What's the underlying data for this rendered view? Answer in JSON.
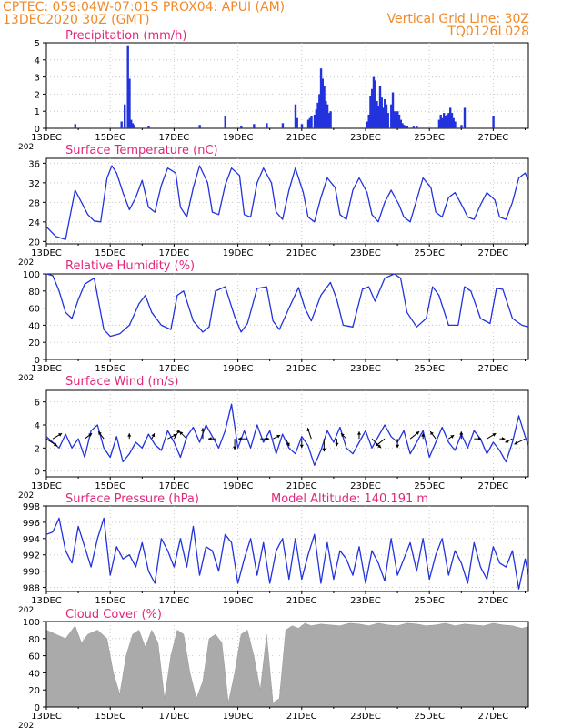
{
  "header": {
    "line1_left": "CPTEC:  059:04W-07:01S  PROX04: APUI (AM)",
    "line2_left": "13DEC2020 30Z (GMT)",
    "line1_right": "Vertical Grid Line: 30Z",
    "line2_right": "TQ0126L028",
    "color": "#f08a2a",
    "title_color": "#e0287a",
    "series_color": "#2233dd",
    "cloud_color": "#aaaaaa"
  },
  "x_ticks": [
    "13DEC",
    "15DEC",
    "17DEC",
    "19DEC",
    "21DEC",
    "23DEC",
    "25DEC",
    "27DEC"
  ],
  "x_tick_sub": "202",
  "x_range_days": [
    13,
    28.1
  ],
  "panels": {
    "precip": {
      "title": "Precipitation  (mm/h)",
      "y_ticks": [
        "0",
        "1",
        "2",
        "3",
        "4",
        "5"
      ],
      "chart_data": {
        "type": "bar",
        "ylim": [
          0,
          5
        ],
        "x_days": [
          13.9,
          15.35,
          15.45,
          15.55,
          15.6,
          15.65,
          15.7,
          15.75,
          16.2,
          17.8,
          18.6,
          19.1,
          19.5,
          19.9,
          20.4,
          20.8,
          20.85,
          21.0,
          21.2,
          21.25,
          21.3,
          21.4,
          21.45,
          21.5,
          21.55,
          21.6,
          21.65,
          21.7,
          21.75,
          21.8,
          21.85,
          21.9,
          23.05,
          23.1,
          23.15,
          23.2,
          23.25,
          23.3,
          23.35,
          23.4,
          23.45,
          23.5,
          23.55,
          23.6,
          23.65,
          23.7,
          23.8,
          23.85,
          23.9,
          23.95,
          24.0,
          24.05,
          24.1,
          24.15,
          24.2,
          24.25,
          24.3,
          24.5,
          24.6,
          25.3,
          25.35,
          25.4,
          25.45,
          25.5,
          25.55,
          25.6,
          25.65,
          25.7,
          25.75,
          25.8,
          26.0,
          26.1,
          27.0
        ],
        "values": [
          0.25,
          0.4,
          1.4,
          4.8,
          2.9,
          0.5,
          0.3,
          0.2,
          0.15,
          0.2,
          0.7,
          0.15,
          0.25,
          0.3,
          0.3,
          1.4,
          0.6,
          0.25,
          0.5,
          0.6,
          0.7,
          0.8,
          1.1,
          1.5,
          2.0,
          3.5,
          2.9,
          2.5,
          1.6,
          1.4,
          0.9,
          1.0,
          0.4,
          0.8,
          1.9,
          2.3,
          3.0,
          2.8,
          1.6,
          1.3,
          2.5,
          1.8,
          1.2,
          1.7,
          1.4,
          0.9,
          1.4,
          2.1,
          1.0,
          0.9,
          1.0,
          0.8,
          0.5,
          0.3,
          0.2,
          0.1,
          0.15,
          0.1,
          0.1,
          0.5,
          0.8,
          0.6,
          0.9,
          0.7,
          0.8,
          0.9,
          1.2,
          0.9,
          0.6,
          0.4,
          0.2,
          1.2,
          0.7
        ]
      }
    },
    "temp": {
      "title": "Surface Temperature (nC)",
      "y_ticks": [
        "20",
        "24",
        "28",
        "32",
        "36"
      ],
      "chart_data": {
        "type": "line",
        "ylim": [
          19.5,
          37
        ],
        "x_days": [
          13.0,
          13.3,
          13.6,
          13.9,
          14.1,
          14.3,
          14.5,
          14.7,
          14.9,
          15.05,
          15.2,
          15.4,
          15.6,
          15.8,
          16.0,
          16.2,
          16.4,
          16.6,
          16.8,
          17.05,
          17.2,
          17.4,
          17.6,
          17.8,
          18.05,
          18.2,
          18.4,
          18.6,
          18.8,
          19.05,
          19.2,
          19.4,
          19.6,
          19.8,
          20.05,
          20.2,
          20.4,
          20.6,
          20.8,
          21.05,
          21.2,
          21.4,
          21.6,
          21.8,
          22.05,
          22.2,
          22.4,
          22.6,
          22.8,
          23.05,
          23.2,
          23.4,
          23.6,
          23.8,
          24.05,
          24.2,
          24.4,
          24.6,
          24.8,
          25.05,
          25.2,
          25.4,
          25.6,
          25.8,
          26.05,
          26.2,
          26.4,
          26.6,
          26.8,
          27.05,
          27.2,
          27.4,
          27.6,
          27.8,
          28.0,
          28.1
        ],
        "values": [
          23.0,
          21.0,
          20.4,
          30.5,
          28.0,
          25.5,
          24.2,
          24.0,
          33.0,
          35.5,
          34.0,
          30.0,
          26.5,
          29.0,
          32.5,
          27.0,
          26.0,
          31.5,
          35.0,
          34.0,
          27.0,
          25.0,
          31.0,
          35.5,
          32.0,
          26.0,
          25.5,
          31.5,
          35.0,
          33.5,
          25.5,
          25.0,
          32.0,
          35.0,
          32.0,
          26.0,
          24.5,
          30.5,
          35.0,
          30.0,
          25.0,
          24.0,
          29.0,
          33.0,
          31.0,
          25.5,
          24.5,
          30.5,
          33.0,
          30.0,
          25.5,
          24.0,
          28.0,
          30.5,
          27.5,
          25.0,
          24.0,
          28.5,
          33.0,
          31.0,
          26.0,
          25.0,
          29.0,
          30.0,
          27.0,
          25.0,
          24.5,
          27.5,
          30.0,
          28.5,
          25.0,
          24.5,
          28.0,
          33.0,
          34.0,
          32.5
        ]
      }
    },
    "rh": {
      "title": "Relative Humidity (%)",
      "y_ticks": [
        "0",
        "20",
        "40",
        "60",
        "80",
        "100"
      ],
      "chart_data": {
        "type": "line",
        "ylim": [
          0,
          100
        ],
        "x_days": [
          13.0,
          13.2,
          13.4,
          13.6,
          13.8,
          14.0,
          14.2,
          14.5,
          14.8,
          15.0,
          15.3,
          15.6,
          15.9,
          16.1,
          16.3,
          16.6,
          16.9,
          17.1,
          17.3,
          17.6,
          17.9,
          18.1,
          18.3,
          18.6,
          18.9,
          19.1,
          19.3,
          19.6,
          19.9,
          20.1,
          20.3,
          20.6,
          20.9,
          21.1,
          21.3,
          21.6,
          21.9,
          22.1,
          22.3,
          22.6,
          22.9,
          23.1,
          23.3,
          23.6,
          23.9,
          24.1,
          24.3,
          24.6,
          24.9,
          25.1,
          25.3,
          25.6,
          25.9,
          26.1,
          26.3,
          26.6,
          26.9,
          27.1,
          27.3,
          27.6,
          27.9,
          28.1
        ],
        "values": [
          100,
          98,
          80,
          55,
          48,
          70,
          88,
          95,
          35,
          27,
          30,
          40,
          65,
          75,
          55,
          40,
          35,
          75,
          80,
          45,
          32,
          38,
          80,
          85,
          50,
          32,
          42,
          83,
          85,
          45,
          35,
          60,
          84,
          60,
          45,
          75,
          90,
          70,
          40,
          38,
          82,
          85,
          68,
          95,
          100,
          95,
          55,
          38,
          48,
          85,
          75,
          40,
          40,
          85,
          80,
          48,
          42,
          83,
          82,
          48,
          40,
          38
        ]
      }
    },
    "wind": {
      "title": "Surface Wind (m/s)",
      "y_ticks": [
        "0",
        "2",
        "4",
        "6"
      ],
      "chart_data": {
        "type": "line",
        "ylim": [
          -0.5,
          7
        ],
        "x_days": [
          13.0,
          13.2,
          13.4,
          13.6,
          13.8,
          14.0,
          14.2,
          14.4,
          14.6,
          14.8,
          15.0,
          15.2,
          15.4,
          15.6,
          15.8,
          16.0,
          16.2,
          16.4,
          16.6,
          16.8,
          17.0,
          17.2,
          17.4,
          17.6,
          17.8,
          18.0,
          18.2,
          18.4,
          18.6,
          18.8,
          19.0,
          19.2,
          19.4,
          19.6,
          19.8,
          20.0,
          20.2,
          20.4,
          20.6,
          20.8,
          21.0,
          21.2,
          21.4,
          21.6,
          21.8,
          22.0,
          22.2,
          22.4,
          22.6,
          22.8,
          23.0,
          23.2,
          23.4,
          23.6,
          23.8,
          24.0,
          24.2,
          24.4,
          24.6,
          24.8,
          25.0,
          25.2,
          25.4,
          25.6,
          25.8,
          26.0,
          26.2,
          26.4,
          26.6,
          26.8,
          27.0,
          27.2,
          27.4,
          27.6,
          27.8,
          28.0,
          28.1
        ],
        "values": [
          3.0,
          2.5,
          2.0,
          3.2,
          2.0,
          2.8,
          1.2,
          3.5,
          4.0,
          2.0,
          1.2,
          3.0,
          0.8,
          1.5,
          2.5,
          2.0,
          3.2,
          2.3,
          1.8,
          3.5,
          2.5,
          1.2,
          3.0,
          3.8,
          2.5,
          4.0,
          3.0,
          2.0,
          3.5,
          5.8,
          2.0,
          3.5,
          2.0,
          4.0,
          2.5,
          3.5,
          1.5,
          3.2,
          2.0,
          1.5,
          3.0,
          2.2,
          0.5,
          1.8,
          3.5,
          2.5,
          3.8,
          2.0,
          1.5,
          2.5,
          3.5,
          2.0,
          3.0,
          4.0,
          3.0,
          2.5,
          3.5,
          1.5,
          2.5,
          3.5,
          1.2,
          2.5,
          3.8,
          2.5,
          1.8,
          3.2,
          2.0,
          3.5,
          2.8,
          1.5,
          2.5,
          1.8,
          0.8,
          2.5,
          4.8,
          3.0,
          2.2
        ],
        "arrows_x_days": [
          13.0,
          13.2,
          14.2,
          14.8,
          15.6,
          16.3,
          16.8,
          17.0,
          17.4,
          17.9,
          18.3,
          18.9,
          19.3,
          19.7,
          20.1,
          20.5,
          21.0,
          21.3,
          21.7,
          22.1,
          22.4,
          22.8,
          23.2,
          23.6,
          24.0,
          24.4,
          24.8,
          25.2,
          25.6,
          26.0,
          26.4,
          26.8,
          27.2,
          27.6,
          28.0
        ],
        "arrows_dx_px": [
          12,
          10,
          8,
          -6,
          0,
          3,
          10,
          6,
          -8,
          0,
          -8,
          0,
          -10,
          10,
          8,
          4,
          0,
          -4,
          0,
          0,
          -6,
          0,
          10,
          -10,
          0,
          10,
          0,
          -6,
          6,
          0,
          8,
          10,
          6,
          -8,
          -12
        ],
        "arrows_dy_px": [
          8,
          -6,
          -6,
          -8,
          -6,
          -6,
          -5,
          -10,
          -8,
          -12,
          0,
          12,
          0,
          0,
          -4,
          8,
          10,
          -12,
          14,
          8,
          -6,
          -8,
          10,
          8,
          10,
          -8,
          -6,
          -8,
          -4,
          -8,
          0,
          -6,
          0,
          4,
          6
        ]
      }
    },
    "pressure": {
      "title": "Surface Pressure (hPa)",
      "subtitle": "Model Altitude: 140.191 m",
      "y_ticks": [
        "988",
        "990",
        "992",
        "994",
        "996",
        "998"
      ],
      "chart_data": {
        "type": "line",
        "ylim": [
          987.5,
          998
        ],
        "x_days": [
          13.0,
          13.2,
          13.4,
          13.6,
          13.8,
          14.0,
          14.2,
          14.4,
          14.6,
          14.8,
          15.0,
          15.2,
          15.4,
          15.6,
          15.8,
          16.0,
          16.2,
          16.4,
          16.6,
          16.8,
          17.0,
          17.2,
          17.4,
          17.6,
          17.8,
          18.0,
          18.2,
          18.4,
          18.6,
          18.8,
          19.0,
          19.2,
          19.4,
          19.6,
          19.8,
          20.0,
          20.2,
          20.4,
          20.6,
          20.8,
          21.0,
          21.2,
          21.4,
          21.6,
          21.8,
          22.0,
          22.2,
          22.4,
          22.6,
          22.8,
          23.0,
          23.2,
          23.4,
          23.6,
          23.8,
          24.0,
          24.2,
          24.4,
          24.6,
          24.8,
          25.0,
          25.2,
          25.4,
          25.6,
          25.8,
          26.0,
          26.2,
          26.4,
          26.6,
          26.8,
          27.0,
          27.2,
          27.4,
          27.6,
          27.8,
          28.0,
          28.1
        ],
        "values": [
          994.5,
          994.8,
          996.5,
          992.5,
          991.0,
          995.5,
          993.0,
          990.5,
          994.0,
          996.5,
          989.5,
          993.0,
          991.5,
          992.0,
          990.5,
          993.5,
          990.0,
          988.5,
          994.0,
          992.5,
          990.5,
          994.0,
          990.5,
          995.5,
          989.5,
          993.0,
          992.5,
          990.0,
          994.5,
          993.5,
          988.5,
          991.5,
          994.0,
          989.5,
          993.5,
          988.5,
          992.5,
          994.0,
          989.0,
          994.0,
          989.0,
          992.0,
          994.5,
          988.5,
          993.5,
          989.0,
          992.5,
          991.5,
          989.5,
          993.0,
          988.5,
          992.5,
          991.0,
          988.8,
          994.0,
          989.5,
          991.5,
          993.5,
          990.0,
          994.0,
          989.0,
          992.0,
          994.0,
          989.5,
          992.5,
          991.0,
          988.5,
          993.5,
          990.5,
          989.0,
          993.0,
          991.0,
          990.5,
          992.5,
          987.8,
          991.5,
          989.5
        ]
      }
    },
    "cloud": {
      "title": "Cloud Cover (%)",
      "y_ticks": [
        "0",
        "20",
        "40",
        "60",
        "80",
        "100"
      ],
      "chart_data": {
        "type": "area",
        "ylim": [
          0,
          100
        ],
        "x_days": [
          13.0,
          13.3,
          13.6,
          13.9,
          14.1,
          14.3,
          14.6,
          14.9,
          15.1,
          15.3,
          15.5,
          15.7,
          15.9,
          16.1,
          16.3,
          16.5,
          16.7,
          16.9,
          17.1,
          17.3,
          17.5,
          17.7,
          17.9,
          18.1,
          18.3,
          18.5,
          18.7,
          18.9,
          19.1,
          19.3,
          19.5,
          19.7,
          19.9,
          20.1,
          20.3,
          20.5,
          20.7,
          20.9,
          21.1,
          21.3,
          21.6,
          21.9,
          22.2,
          22.5,
          22.8,
          23.1,
          23.4,
          23.7,
          24.0,
          24.3,
          24.6,
          24.9,
          25.2,
          25.5,
          25.8,
          26.1,
          26.4,
          26.7,
          27.0,
          27.3,
          27.6,
          27.9,
          28.1
        ],
        "values": [
          90,
          85,
          80,
          95,
          75,
          85,
          90,
          80,
          40,
          15,
          60,
          85,
          90,
          70,
          90,
          75,
          10,
          60,
          90,
          85,
          40,
          10,
          30,
          80,
          85,
          75,
          5,
          40,
          85,
          90,
          60,
          20,
          85,
          5,
          10,
          90,
          95,
          92,
          98,
          95,
          97,
          96,
          95,
          98,
          97,
          95,
          98,
          96,
          95,
          98,
          97,
          95,
          96,
          98,
          95,
          97,
          96,
          95,
          98,
          96,
          95,
          92,
          94
        ]
      }
    }
  }
}
